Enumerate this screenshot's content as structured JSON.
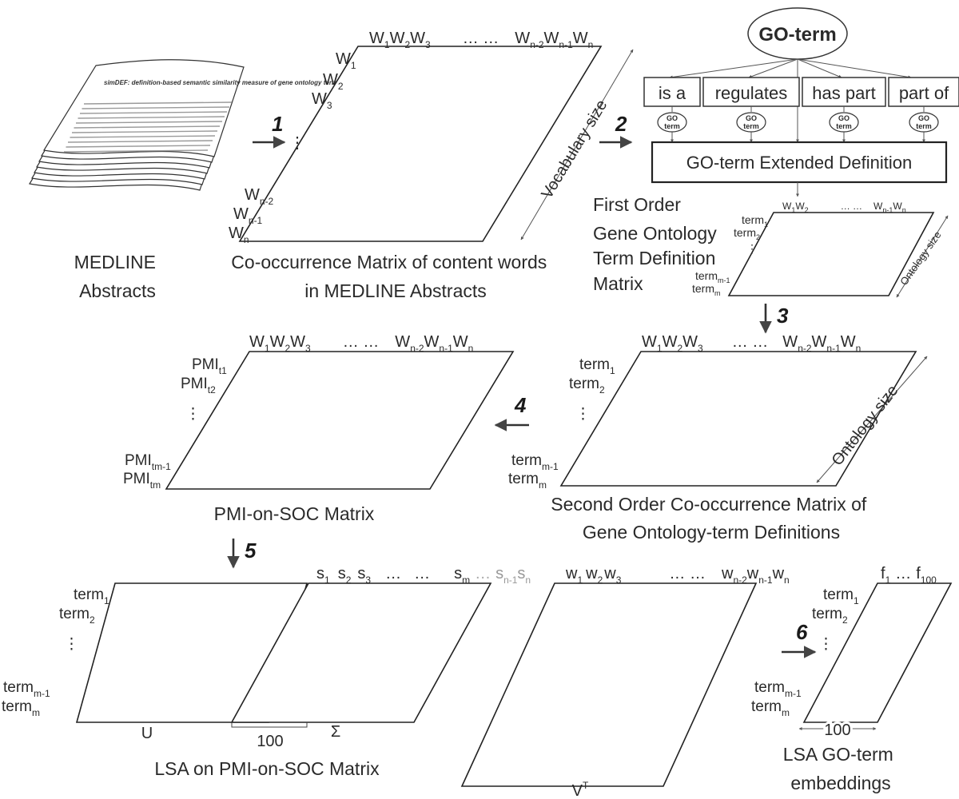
{
  "colors": {
    "shade": "#9a9a9a",
    "shade_mid": "#c3c3c3",
    "shade_light": "#e2e2e2",
    "line": "#222222"
  },
  "paper": {
    "title": "simDEF: definition-based semantic similarity measure of gene ontology terms for functional similarity analysis of genes"
  },
  "labels": {
    "medline_caption": [
      "MEDLINE",
      "Abstracts"
    ],
    "cooc_caption": [
      "Co-occurrence Matrix of content words",
      "in MEDLINE Abstracts"
    ],
    "vocab_size": "Vocabulary size",
    "ontology_size": "Ontology size",
    "go_term": "GO-term",
    "relations": [
      "is a",
      "regulates",
      "has part",
      "part of"
    ],
    "go_small": [
      "GO",
      "term"
    ],
    "extended_def": "GO-term Extended Definition",
    "first_order": [
      "First Order",
      "Gene Ontology",
      "Term Definition",
      "Matrix"
    ],
    "soc_caption": [
      "Second Order Co-occurrence Matrix of",
      "Gene Ontology-term Definitions"
    ],
    "pmi_caption": "PMI-on-SOC Matrix",
    "lsa_caption": "LSA on PMI-on-SOC Matrix",
    "U": "U",
    "Sigma": "Σ",
    "VT": "V",
    "VT_sup": "T",
    "hundred": "100",
    "emb_caption": [
      "LSA GO-term",
      "embeddings"
    ]
  },
  "steps": [
    "1",
    "2",
    "3",
    "4",
    "5",
    "6"
  ]
}
